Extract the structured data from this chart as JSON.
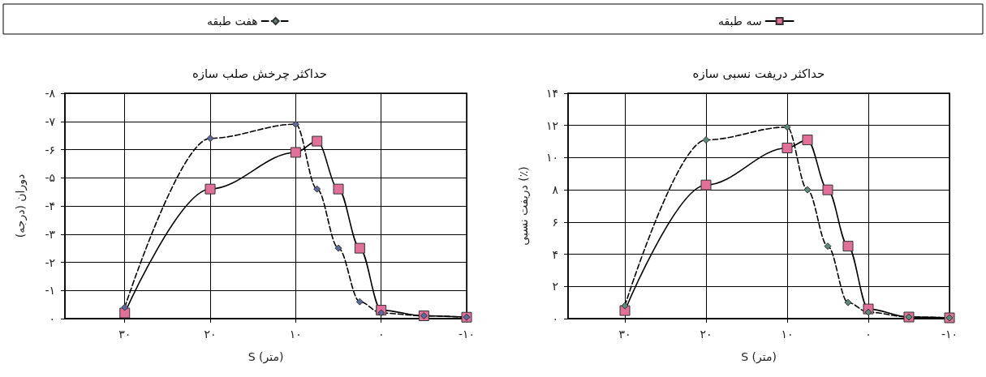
{
  "chart_data": [
    {
      "type": "line",
      "title": "حداکثر دریفت نسبی سازه",
      "xlabel": "S (متر)",
      "ylabel": "دریفت نسبی (٪)",
      "x": [
        30,
        20,
        10,
        7.5,
        5,
        2.5,
        0,
        -5,
        -10
      ],
      "series": [
        {
          "name": "سه طبقه",
          "color": "#e0709a",
          "marker": "square",
          "line_style": "solid",
          "values": [
            0.5,
            8.3,
            10.6,
            11.1,
            8.0,
            4.5,
            0.6,
            0.1,
            0.05
          ]
        },
        {
          "name": "هفت طبقه",
          "color": "#5a8a7a",
          "marker": "diamond",
          "line_style": "dashed",
          "values": [
            0.8,
            11.1,
            11.9,
            8.0,
            4.5,
            1.0,
            0.4,
            0.1,
            0.05
          ]
        }
      ],
      "xlim": [
        37,
        -10
      ],
      "xticks": [
        {
          "value": 30,
          "label": "۳۰"
        },
        {
          "value": 20,
          "label": "۲۰"
        },
        {
          "value": 10,
          "label": "۱۰"
        },
        {
          "value": 0,
          "label": "۰"
        },
        {
          "value": -10,
          "label": "-۱۰"
        }
      ],
      "ylim": [
        0,
        14
      ],
      "yticks": [
        {
          "value": 0,
          "label": "۰"
        },
        {
          "value": 2,
          "label": "۲"
        },
        {
          "value": 4,
          "label": "۴"
        },
        {
          "value": 6,
          "label": "۶"
        },
        {
          "value": 8,
          "label": "۸"
        },
        {
          "value": 10,
          "label": "۱۰"
        },
        {
          "value": 12,
          "label": "۱۲"
        },
        {
          "value": 14,
          "label": "۱۴"
        }
      ],
      "grid": true,
      "legend": "top"
    },
    {
      "type": "line",
      "title": "حداکثر چرخش صلب سازه",
      "xlabel": "S (متر)",
      "ylabel": "دوران (درجه)",
      "x": [
        30,
        20,
        10,
        7.5,
        5,
        2.5,
        0,
        -5,
        -10
      ],
      "series": [
        {
          "name": "سه طبقه",
          "color": "#e0709a",
          "marker": "square",
          "line_style": "solid",
          "values": [
            -0.2,
            -4.6,
            -5.9,
            -6.3,
            -4.6,
            -2.5,
            -0.3,
            -0.1,
            -0.05
          ]
        },
        {
          "name": "هفت طبقه",
          "color": "#5a6a9a",
          "marker": "diamond",
          "line_style": "dashed",
          "values": [
            -0.4,
            -6.4,
            -6.9,
            -4.6,
            -2.5,
            -0.6,
            -0.2,
            -0.1,
            -0.05
          ]
        }
      ],
      "xlim": [
        37,
        -10
      ],
      "xticks": [
        {
          "value": 30,
          "label": "۳۰"
        },
        {
          "value": 20,
          "label": "۲۰"
        },
        {
          "value": 10,
          "label": "۱۰"
        },
        {
          "value": 0,
          "label": "۰"
        },
        {
          "value": -10,
          "label": "-۱۰"
        }
      ],
      "ylim": [
        0,
        -8
      ],
      "yticks": [
        {
          "value": 0,
          "label": "۰"
        },
        {
          "value": -1,
          "label": "-۱"
        },
        {
          "value": -2,
          "label": "-۲"
        },
        {
          "value": -3,
          "label": "-۳"
        },
        {
          "value": -4,
          "label": "-۴"
        },
        {
          "value": -5,
          "label": "-۵"
        },
        {
          "value": -6,
          "label": "-۶"
        },
        {
          "value": -7,
          "label": "-۷"
        },
        {
          "value": -8,
          "label": "-۸"
        }
      ],
      "grid": true,
      "legend": "top"
    }
  ]
}
